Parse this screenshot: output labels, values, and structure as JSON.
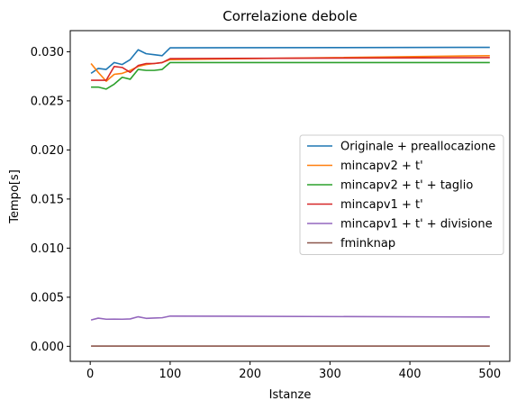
{
  "chart_data": {
    "type": "line",
    "title": "Correlazione debole",
    "xlabel": "Istanze",
    "ylabel": "Tempo[s]",
    "xlim": [
      -25,
      525
    ],
    "ylim": [
      -0.00153,
      0.03215
    ],
    "xticks": [
      0,
      100,
      200,
      300,
      400,
      500
    ],
    "xtick_labels": [
      "0",
      "100",
      "200",
      "300",
      "400",
      "500"
    ],
    "yticks": [
      0.0,
      0.005,
      0.01,
      0.015,
      0.02,
      0.025,
      0.03
    ],
    "ytick_labels": [
      "0.000",
      "0.005",
      "0.010",
      "0.015",
      "0.020",
      "0.025",
      "0.030"
    ],
    "grid": false,
    "legend_position": "center-right",
    "x": [
      1,
      10,
      20,
      30,
      40,
      50,
      60,
      70,
      80,
      90,
      100,
      500
    ],
    "series": [
      {
        "name": "Originale + preallocazione",
        "color": "#1f77b4",
        "values": [
          0.0278,
          0.0283,
          0.0282,
          0.0289,
          0.0287,
          0.0292,
          0.0302,
          0.0298,
          0.0297,
          0.0296,
          0.0304,
          0.03045
        ]
      },
      {
        "name": "mincapv2 + t'",
        "color": "#ff7f0e",
        "values": [
          0.0288,
          0.0279,
          0.027,
          0.0277,
          0.0278,
          0.0281,
          0.0285,
          0.0287,
          0.0288,
          0.0289,
          0.0292,
          0.0296
        ]
      },
      {
        "name": "mincapv2 + t' + taglio",
        "color": "#2ca02c",
        "values": [
          0.0264,
          0.0264,
          0.0262,
          0.0267,
          0.0274,
          0.0272,
          0.0282,
          0.0281,
          0.0281,
          0.0282,
          0.0289,
          0.0289
        ]
      },
      {
        "name": "mincapv1 + t'",
        "color": "#d62728",
        "values": [
          0.0271,
          0.0271,
          0.0271,
          0.0285,
          0.0284,
          0.0279,
          0.0286,
          0.0288,
          0.0288,
          0.0289,
          0.0293,
          0.0294
        ]
      },
      {
        "name": "mincapv1 + t' + divisione",
        "color": "#9467bd",
        "values": [
          0.00268,
          0.00287,
          0.00276,
          0.00277,
          0.00276,
          0.00279,
          0.00301,
          0.00285,
          0.00288,
          0.00291,
          0.00308,
          0.00298
        ]
      },
      {
        "name": "fminknap",
        "color": "#8c564b",
        "values": [
          2e-05,
          2e-05,
          2e-05,
          2e-05,
          2e-05,
          2e-05,
          2e-05,
          2e-05,
          2e-05,
          2e-05,
          2e-05,
          2e-05
        ]
      }
    ]
  }
}
